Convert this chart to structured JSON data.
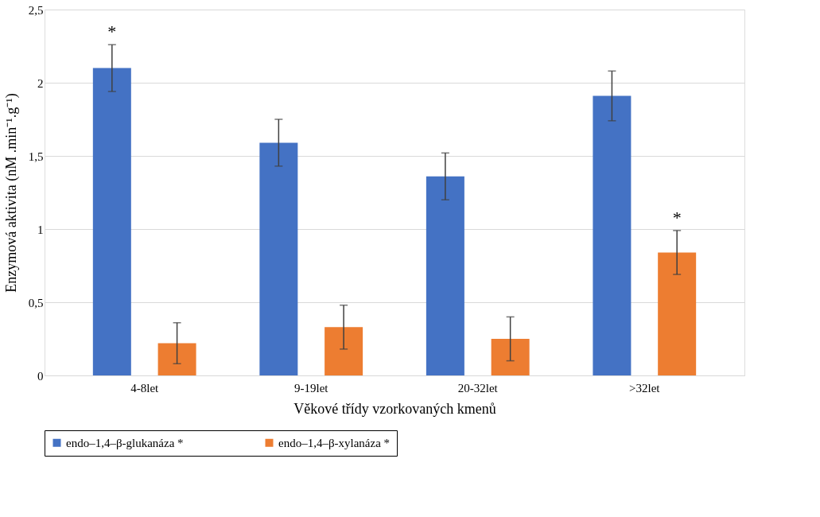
{
  "chart_data": {
    "type": "bar",
    "xlabel": "Věkové třídy vzorkovaných kmenů",
    "ylabel": "Enzymová aktivita (nM .min⁻¹.g⁻¹)",
    "categories": [
      "4-8let",
      "9-19let",
      "20-32let",
      ">32let"
    ],
    "series": [
      {
        "name": "endo–1,4–β-glukanáza *",
        "color": "#4472c4",
        "values": [
          2.1,
          1.59,
          1.36,
          1.91
        ],
        "errors": [
          0.16,
          0.16,
          0.16,
          0.17
        ]
      },
      {
        "name": "endo–1,4–β-xylanáza *",
        "color": "#ed7d31",
        "values": [
          0.22,
          0.33,
          0.25,
          0.84
        ],
        "errors": [
          0.14,
          0.15,
          0.15,
          0.15
        ]
      }
    ],
    "ylim": [
      0,
      2.5
    ],
    "yticks": [
      0,
      {
        "value": 0.5,
        "label": "0,5"
      },
      1,
      {
        "value": 1.5,
        "label": "1,5"
      },
      2,
      {
        "value": 2.5,
        "label": "2,5"
      }
    ],
    "grid": "y",
    "legend": "bottom",
    "annotations": [
      "*",
      "*"
    ]
  }
}
